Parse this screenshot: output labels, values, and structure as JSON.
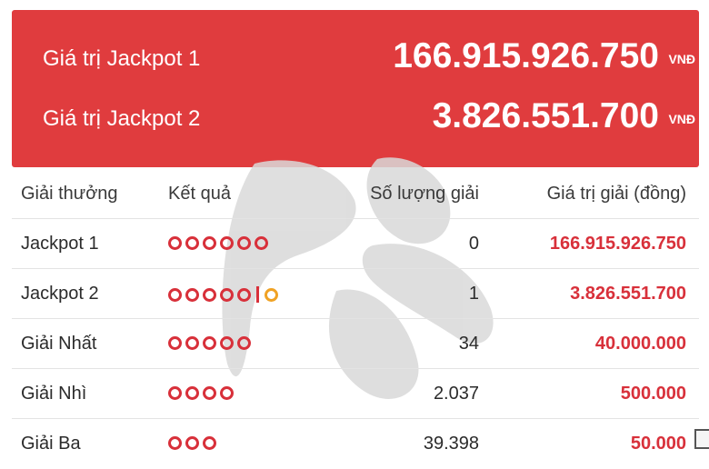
{
  "jackpots": [
    {
      "label": "Giá trị Jackpot 1",
      "value": "166.915.926.750",
      "unit": "VNĐ"
    },
    {
      "label": "Giá trị Jackpot 2",
      "value": "3.826.551.700",
      "unit": "VNĐ"
    }
  ],
  "table": {
    "headers": {
      "prize": "Giải thưởng",
      "result": "Kết quả",
      "count": "Số lượng giải",
      "value": "Giá trị giải (đồng)"
    },
    "rows": [
      {
        "prize": "Jackpot 1",
        "balls": 6,
        "extra": 0,
        "count": "0",
        "value": "166.915.926.750"
      },
      {
        "prize": "Jackpot 2",
        "balls": 5,
        "extra": 1,
        "count": "1",
        "value": "3.826.551.700"
      },
      {
        "prize": "Giải Nhất",
        "balls": 5,
        "extra": 0,
        "count": "34",
        "value": "40.000.000"
      },
      {
        "prize": "Giải Nhì",
        "balls": 4,
        "extra": 0,
        "count": "2.037",
        "value": "500.000"
      },
      {
        "prize": "Giải Ba",
        "balls": 3,
        "extra": 0,
        "count": "39.398",
        "value": "50.000"
      }
    ]
  },
  "colors": {
    "panel": "#e03c3e",
    "accent": "#d8303a",
    "extra_ball": "#f0a224"
  }
}
